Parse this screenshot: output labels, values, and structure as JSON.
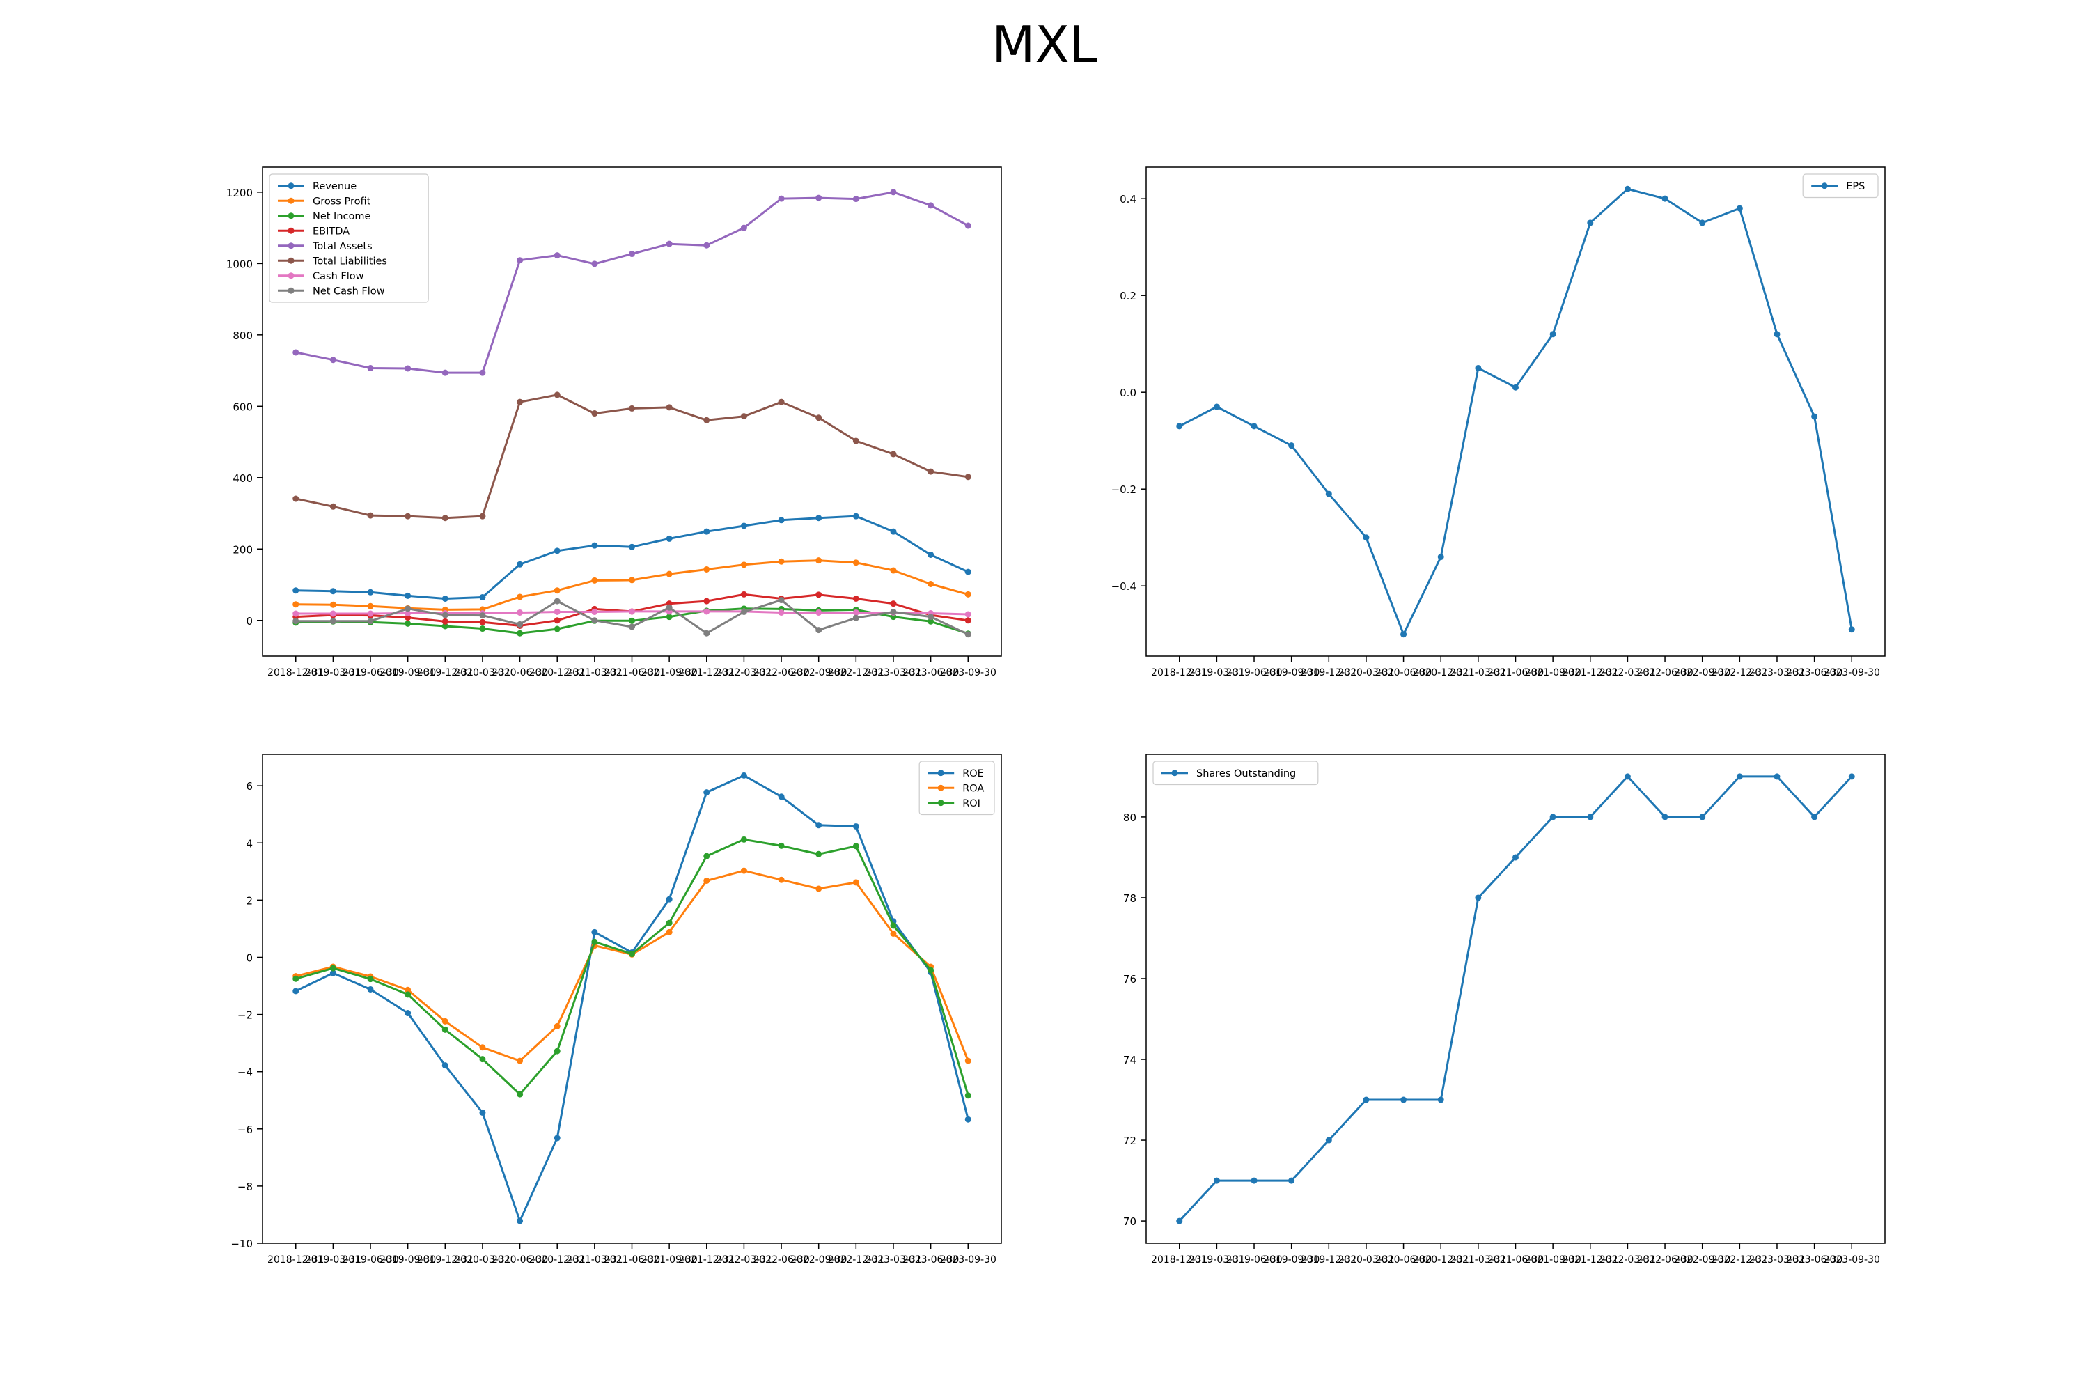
{
  "figure": {
    "title": "MXL"
  },
  "chart_data": [
    {
      "type": "line",
      "x": [
        "2018-12-31",
        "2019-03-31",
        "2019-06-30",
        "2019-09-30",
        "2019-12-31",
        "2020-03-31",
        "2020-06-30",
        "2020-12-31",
        "2021-03-31",
        "2021-06-30",
        "2021-09-30",
        "2021-12-31",
        "2022-03-31",
        "2022-06-30",
        "2022-09-30",
        "2022-12-31",
        "2023-03-31",
        "2023-06-30",
        "2023-09-30"
      ],
      "ylim": [
        -100,
        1270
      ],
      "yticks": [
        0,
        200,
        400,
        600,
        800,
        1000,
        1200
      ],
      "legend": "top-left",
      "series": [
        {
          "name": "Revenue",
          "color": "#1f77b4",
          "values": [
            84,
            82,
            79,
            69,
            61,
            65,
            157,
            195,
            210,
            206,
            229,
            249,
            265,
            281,
            287,
            292,
            249,
            184,
            136
          ]
        },
        {
          "name": "Gross Profit",
          "color": "#ff7f0e",
          "values": [
            45,
            44,
            40,
            34,
            30,
            31,
            66,
            84,
            112,
            113,
            130,
            143,
            156,
            165,
            168,
            162,
            140,
            102,
            73
          ]
        },
        {
          "name": "Net Income",
          "color": "#2ca02c",
          "values": [
            -6,
            -3,
            -5,
            -9,
            -16,
            -23,
            -36,
            -24,
            -1,
            -1,
            10,
            27,
            33,
            32,
            28,
            30,
            10,
            -3,
            -37
          ]
        },
        {
          "name": "EBITDA",
          "color": "#d62728",
          "values": [
            10,
            15,
            14,
            8,
            -3,
            -5,
            -15,
            0,
            32,
            25,
            47,
            54,
            73,
            61,
            72,
            61,
            47,
            15,
            0
          ]
        },
        {
          "name": "Total Assets",
          "color": "#9467bd",
          "values": [
            751,
            730,
            707,
            706,
            694,
            694,
            1009,
            1023,
            999,
            1027,
            1055,
            1051,
            1100,
            1182,
            1184,
            1181,
            1200,
            1163,
            1106
          ]
        },
        {
          "name": "Total Liabilities",
          "color": "#8c564b",
          "values": [
            341,
            319,
            294,
            292,
            287,
            292,
            612,
            632,
            580,
            594,
            597,
            561,
            572,
            612,
            568,
            503,
            466,
            417,
            402
          ]
        },
        {
          "name": "Cash Flow",
          "color": "#e377c2",
          "values": [
            19,
            19,
            19,
            20,
            20,
            20,
            22,
            24,
            24,
            25,
            25,
            25,
            25,
            22,
            22,
            22,
            22,
            20,
            17
          ]
        },
        {
          "name": "Net Cash Flow",
          "color": "#7f7f7f",
          "values": [
            -2,
            -2,
            -2,
            33,
            15,
            14,
            -11,
            54,
            0,
            -18,
            36,
            -36,
            24,
            57,
            -27,
            7,
            24,
            10,
            -39
          ]
        }
      ]
    },
    {
      "type": "line",
      "x": [
        "2018-12-31",
        "2019-03-31",
        "2019-06-30",
        "2019-09-30",
        "2019-12-31",
        "2020-03-31",
        "2020-06-30",
        "2020-12-31",
        "2021-03-31",
        "2021-06-30",
        "2021-09-30",
        "2021-12-31",
        "2022-03-31",
        "2022-06-30",
        "2022-09-30",
        "2022-12-31",
        "2023-03-31",
        "2023-06-30",
        "2023-09-30"
      ],
      "ylim": [
        -0.545,
        0.465
      ],
      "yticks": [
        -0.4,
        -0.2,
        0.0,
        0.2,
        0.4
      ],
      "ytick_labels": [
        "−0.4",
        "−0.2",
        "0.0",
        "0.2",
        "0.4"
      ],
      "legend": "top-right",
      "series": [
        {
          "name": "EPS",
          "color": "#1f77b4",
          "values": [
            -0.07,
            -0.03,
            -0.07,
            -0.11,
            -0.21,
            -0.3,
            -0.5,
            -0.34,
            0.05,
            0.01,
            0.12,
            0.35,
            0.42,
            0.4,
            0.35,
            0.38,
            0.12,
            -0.05,
            -0.49
          ]
        }
      ]
    },
    {
      "type": "line",
      "x": [
        "2018-12-31",
        "2019-03-31",
        "2019-06-30",
        "2019-09-30",
        "2019-12-31",
        "2020-03-31",
        "2020-06-30",
        "2020-12-31",
        "2021-03-31",
        "2021-06-30",
        "2021-09-30",
        "2021-12-31",
        "2022-03-31",
        "2022-06-30",
        "2022-09-30",
        "2022-12-31",
        "2023-03-31",
        "2023-06-30",
        "2023-09-30"
      ],
      "ylim": [
        -10,
        7.1
      ],
      "yticks": [
        -10,
        -8,
        -6,
        -4,
        -2,
        0,
        2,
        4,
        6
      ],
      "ytick_labels": [
        "−10",
        "−8",
        "−6",
        "−4",
        "−2",
        "0",
        "2",
        "4",
        "6"
      ],
      "legend": "top-right",
      "series": [
        {
          "name": "ROE",
          "color": "#1f77b4",
          "values": [
            -1.18,
            -0.55,
            -1.12,
            -1.95,
            -3.78,
            -5.43,
            -9.22,
            -6.32,
            0.88,
            0.17,
            2.03,
            5.77,
            6.36,
            5.62,
            4.62,
            4.58,
            1.26,
            -0.52,
            -5.67
          ]
        },
        {
          "name": "ROA",
          "color": "#ff7f0e",
          "values": [
            -0.66,
            -0.33,
            -0.67,
            -1.14,
            -2.24,
            -3.15,
            -3.62,
            -2.41,
            0.41,
            0.1,
            0.88,
            2.68,
            3.03,
            2.71,
            2.4,
            2.62,
            0.83,
            -0.33,
            -3.62
          ]
        },
        {
          "name": "ROI",
          "color": "#2ca02c",
          "values": [
            -0.75,
            -0.38,
            -0.76,
            -1.3,
            -2.53,
            -3.56,
            -4.79,
            -3.28,
            0.54,
            0.12,
            1.2,
            3.54,
            4.12,
            3.9,
            3.61,
            3.89,
            1.11,
            -0.45,
            -4.83
          ]
        }
      ]
    },
    {
      "type": "line",
      "x": [
        "2018-12-31",
        "2019-03-31",
        "2019-06-30",
        "2019-09-30",
        "2019-12-31",
        "2020-03-31",
        "2020-06-30",
        "2020-12-31",
        "2021-03-31",
        "2021-06-30",
        "2021-09-30",
        "2021-12-31",
        "2022-03-31",
        "2022-06-30",
        "2022-09-30",
        "2022-12-31",
        "2023-03-31",
        "2023-06-30",
        "2023-09-30"
      ],
      "ylim": [
        69.45,
        81.55
      ],
      "yticks": [
        70,
        72,
        74,
        76,
        78,
        80
      ],
      "legend": "top-left",
      "series": [
        {
          "name": "Shares Outstanding",
          "color": "#1f77b4",
          "values": [
            70,
            71,
            71,
            71,
            72,
            73,
            73,
            73,
            78,
            79,
            80,
            80,
            81,
            80,
            80,
            81,
            81,
            80,
            81
          ]
        }
      ]
    }
  ]
}
